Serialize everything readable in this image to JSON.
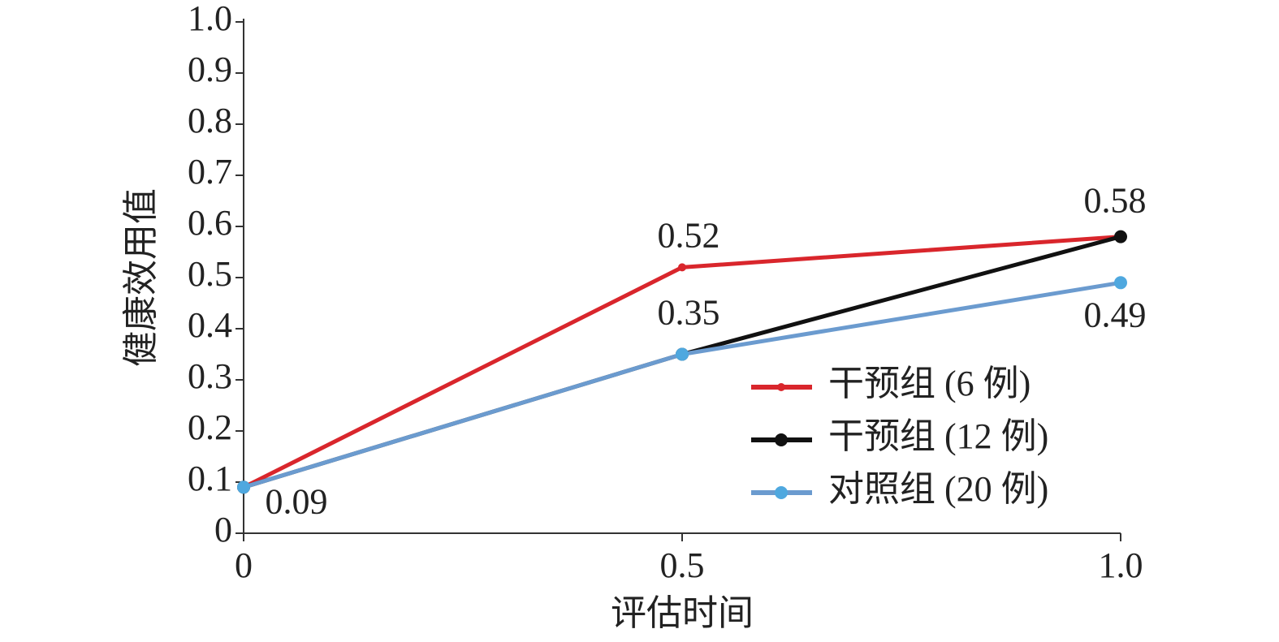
{
  "chart_data": {
    "type": "line",
    "xlabel": "评估时间",
    "ylabel": "健康效用值",
    "x": [
      0,
      0.5,
      1
    ],
    "series": [
      {
        "name": "干预组 (6 例)",
        "color": "#d9262c",
        "values": [
          0.09,
          0.52,
          0.58
        ]
      },
      {
        "name": "干预组 (12 例)",
        "color": "#111111",
        "values": [
          0.09,
          0.35,
          0.58
        ]
      },
      {
        "name": "对照组 (20 例)",
        "color": "#6b9bcf",
        "values": [
          0.09,
          0.35,
          0.49
        ]
      }
    ],
    "xlim": [
      0,
      1
    ],
    "xticks": [
      0,
      0.5,
      {
        "value": 1,
        "label": "1.0"
      }
    ],
    "ylim": [
      0,
      1
    ],
    "yticks": [
      0,
      0.1,
      0.2,
      0.3,
      0.4,
      0.5,
      0.6,
      0.7,
      0.8,
      0.9,
      {
        "value": 1,
        "label": "1.0"
      }
    ],
    "legend": "lower right",
    "grid": false
  }
}
